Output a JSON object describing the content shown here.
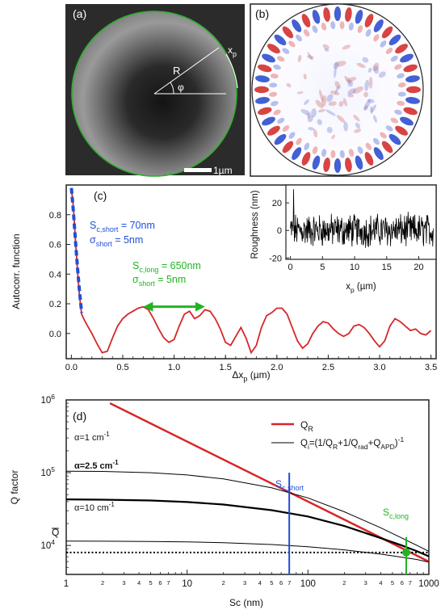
{
  "panels": {
    "a": {
      "label": "(a)",
      "R_label": "R",
      "phi_label": "φ",
      "xp_label_main": "x",
      "xp_label_sub": "p",
      "scalebar_label": "1µm",
      "ring_color": "#2fae2f"
    },
    "b": {
      "label": "(b)"
    },
    "c": {
      "label": "(c)"
    },
    "d": {
      "label": "(d)"
    }
  },
  "chart_data": [
    {
      "type": "line",
      "panel": "c",
      "xlabel": "Δx",
      "xlabel_sub": "p",
      "xlabel_unit": " (µm)",
      "ylabel": "Autocorr. function",
      "xlim": [
        -0.05,
        3.55
      ],
      "ylim": [
        -0.17,
        1.0
      ],
      "xticks": [
        0.0,
        0.5,
        1.0,
        1.5,
        2.0,
        2.5,
        3.0,
        3.5
      ],
      "xtick_labels": [
        "0.0",
        "0.5",
        "1.0",
        "1.5",
        "2.0",
        "2.5",
        "3.0",
        "3.5"
      ],
      "yticks": [
        0.0,
        0.2,
        0.4,
        0.6,
        0.8
      ],
      "ytick_labels": [
        "0.0",
        "0.2",
        "0.4",
        "0.6",
        "0.8"
      ],
      "series": [
        {
          "name": "autocorrelation",
          "color": "#d62728",
          "x": [
            0.0,
            0.02,
            0.04,
            0.06,
            0.08,
            0.1,
            0.12,
            0.15,
            0.2,
            0.25,
            0.3,
            0.35,
            0.4,
            0.45,
            0.5,
            0.55,
            0.6,
            0.65,
            0.7,
            0.75,
            0.8,
            0.85,
            0.9,
            0.95,
            1.0,
            1.05,
            1.1,
            1.15,
            1.2,
            1.25,
            1.3,
            1.35,
            1.4,
            1.45,
            1.5,
            1.55,
            1.6,
            1.65,
            1.7,
            1.75,
            1.8,
            1.85,
            1.9,
            1.95,
            2.0,
            2.05,
            2.1,
            2.15,
            2.2,
            2.25,
            2.3,
            2.35,
            2.4,
            2.45,
            2.5,
            2.55,
            2.6,
            2.65,
            2.7,
            2.75,
            2.8,
            2.85,
            2.9,
            2.95,
            3.0,
            3.05,
            3.1,
            3.15,
            3.2,
            3.25,
            3.3,
            3.35,
            3.4,
            3.45,
            3.5
          ],
          "y": [
            0.98,
            0.85,
            0.62,
            0.42,
            0.25,
            0.13,
            0.1,
            0.06,
            0.0,
            -0.07,
            -0.13,
            -0.12,
            -0.03,
            0.05,
            0.1,
            0.13,
            0.15,
            0.17,
            0.18,
            0.16,
            0.1,
            0.03,
            -0.03,
            -0.06,
            -0.04,
            0.05,
            0.13,
            0.15,
            0.1,
            0.12,
            0.16,
            0.15,
            0.1,
            0.03,
            -0.06,
            -0.08,
            -0.02,
            0.04,
            -0.03,
            -0.13,
            -0.08,
            0.04,
            0.12,
            0.14,
            0.17,
            0.17,
            0.13,
            0.04,
            -0.05,
            -0.1,
            -0.07,
            0.0,
            0.05,
            0.08,
            0.07,
            0.03,
            0.0,
            -0.02,
            0.0,
            0.05,
            0.06,
            0.04,
            0.0,
            -0.05,
            -0.09,
            -0.05,
            0.05,
            0.1,
            0.08,
            0.05,
            0.02,
            0.03,
            0.0,
            -0.01,
            0.02
          ]
        },
        {
          "name": "short-range fit",
          "color": "#1f4fd6",
          "dashed": true,
          "x": [
            0.0,
            0.02,
            0.04,
            0.06,
            0.08,
            0.1
          ],
          "y": [
            0.98,
            0.82,
            0.62,
            0.44,
            0.28,
            0.14
          ]
        }
      ],
      "annotations": {
        "short_main": "S",
        "short_sub": "c,short",
        "short_rest": " = 70nm",
        "short_sigma_main": "σ",
        "short_sigma_sub": "short",
        "short_sigma_rest": " = 5nm",
        "long_main": "S",
        "long_sub": "c,long",
        "long_rest": " = 650nm",
        "long_sigma_main": "σ",
        "long_sigma_sub": "short",
        "long_sigma_rest": " = 5nm",
        "short_color": "#1f4fd6",
        "long_color": "#22b322",
        "arrow_range": [
          0.7,
          1.3
        ],
        "arrow_y": 0.18
      }
    },
    {
      "type": "line",
      "panel": "c-inset",
      "xlabel": "x",
      "xlabel_sub": "p",
      "xlabel_unit": " (µm)",
      "ylabel": "Roughness (nm)",
      "xlim": [
        -0.7,
        22.7
      ],
      "ylim": [
        -21,
        33
      ],
      "xticks": [
        0,
        5,
        10,
        15,
        20
      ],
      "xtick_labels": [
        "0",
        "5",
        "10",
        "15",
        "20"
      ],
      "yticks": [
        -20,
        0,
        20
      ],
      "ytick_labels": [
        "-20",
        "0",
        "20"
      ],
      "series": [
        {
          "name": "roughness",
          "color": "#000000",
          "amplitude": 10,
          "peak": 30,
          "min": -18
        }
      ]
    },
    {
      "type": "line",
      "panel": "d",
      "scale": "log-log",
      "xlabel": "Sc (nm)",
      "ylabel": "Q factor",
      "xlim": [
        1,
        1000
      ],
      "ylim": [
        4000,
        1000000
      ],
      "xtick_labels": [
        "1",
        "10",
        "100",
        "1000"
      ],
      "ytick_main": [
        "10",
        "10",
        "10"
      ],
      "ytick_exp": [
        "6",
        "5",
        "4"
      ],
      "ytick_values": [
        1000000,
        100000,
        10000
      ],
      "minor_tick_labels": [
        "2",
        "3",
        "4",
        "5",
        "6",
        "7"
      ],
      "legend": [
        {
          "label_main": "Q",
          "label_sub": "R",
          "label_rest": "",
          "color": "#d62728",
          "width": 2.5
        },
        {
          "label_main": "Q",
          "label_sub": "i",
          "label_rest": "=(1/Q",
          "color": "#000000",
          "width": 1
        }
      ],
      "legend_full_text": {
        "p1": "Q",
        "s1": "i",
        "p2": "=(1/Q",
        "s2": "R",
        "p3": "+1/Q",
        "s3": "rad",
        "p4": "+Q",
        "s4": "APD",
        "p5": ")",
        "sup": "-1"
      },
      "series": [
        {
          "name": "Q_R",
          "color": "#d62728",
          "x": [
            2.3,
            1000
          ],
          "y": [
            900000,
            6000
          ]
        },
        {
          "name": "alpha1",
          "color": "#000000",
          "width": 1,
          "x": [
            1,
            2,
            5,
            10,
            20,
            50,
            100,
            200,
            400,
            600,
            800,
            1000
          ],
          "y": [
            105000,
            104000,
            100000,
            93000,
            82000,
            62000,
            45000,
            29000,
            17500,
            12600,
            10000,
            8300
          ]
        },
        {
          "name": "alpha2.5",
          "color": "#000000",
          "width": 2.2,
          "x": [
            1,
            2,
            5,
            10,
            20,
            50,
            100,
            200,
            400,
            600,
            800,
            1000
          ],
          "y": [
            43000,
            42600,
            41500,
            39500,
            36500,
            30500,
            25000,
            18500,
            12600,
            10000,
            8300,
            7100
          ]
        },
        {
          "name": "alpha10",
          "color": "#000000",
          "width": 1,
          "x": [
            1,
            2,
            5,
            10,
            20,
            50,
            100,
            200,
            400,
            600,
            800,
            1000
          ],
          "y": [
            11500,
            11450,
            11350,
            11200,
            10900,
            10300,
            9600,
            8700,
            7600,
            6900,
            6400,
            5900
          ]
        }
      ],
      "alpha_labels": [
        {
          "main": "α=1 cm",
          "sup": "-1",
          "bold": false,
          "y": 130000
        },
        {
          "main": "α=2.5 cm",
          "sup": "-1",
          "bold": true,
          "y": 52000
        },
        {
          "main": "α=10 cm",
          "sup": "-1",
          "bold": false,
          "y": 13800
        }
      ],
      "q_bar_label": "Q",
      "q_bar_value": 8000,
      "vlines": [
        {
          "x": 70,
          "label_main": "S",
          "label_sub": "c,short",
          "color": "#1f4fd6",
          "ymin": 4000,
          "ymax": 100000
        },
        {
          "x": 650,
          "label_main": "S",
          "label_sub": "c,long",
          "color": "#22b322",
          "ymin": 4000,
          "ymax": 13000
        }
      ],
      "marker": {
        "x": 650,
        "y": 8000,
        "color": "#22b322"
      }
    }
  ]
}
